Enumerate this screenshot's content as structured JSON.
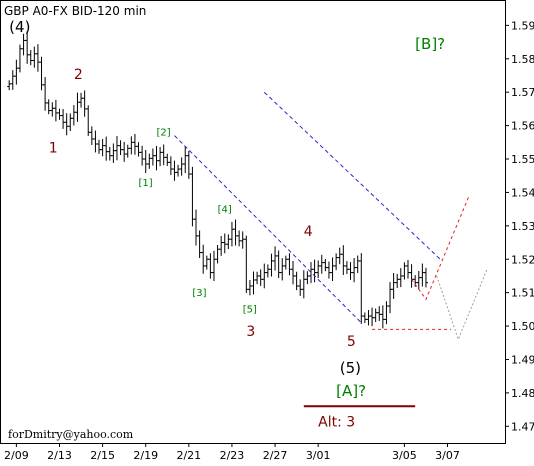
{
  "chart_data": {
    "type": "ohlc",
    "title": "GBP A0-FX BID-120 min",
    "footer": "forDmitry@yahoo.com",
    "ylim": [
      1.465,
      1.597
    ],
    "y_ticks": [
      1.47,
      1.48,
      1.49,
      1.5,
      1.51,
      1.52,
      1.53,
      1.54,
      1.55,
      1.56,
      1.57,
      1.58,
      1.59
    ],
    "y_tick_labels": [
      "1.47",
      "1.48",
      "1.49",
      "1.50",
      "1.51",
      "1.52",
      "1.53",
      "1.54",
      "1.55",
      "1.56",
      "1.57",
      "1.58",
      "1.59"
    ],
    "x_ticks": [
      4,
      16,
      28,
      40,
      52,
      64,
      76,
      88,
      100,
      112,
      124
    ],
    "x_tick_labels": [
      "2/09",
      "2/13",
      "2/15",
      "2/19",
      "2/21",
      "2/23",
      "2/27",
      "3/01",
      "3/05",
      "3/07"
    ],
    "x_tick_label_index": [
      0,
      1,
      2,
      3,
      4,
      5,
      6,
      7,
      9,
      10
    ],
    "xlim": [
      0,
      140
    ],
    "closes": [
      1.5725,
      1.5748,
      1.5772,
      1.583,
      1.5855,
      1.5812,
      1.5795,
      1.5815,
      1.579,
      1.5722,
      1.5668,
      1.5645,
      1.5652,
      1.5638,
      1.563,
      1.561,
      1.5598,
      1.5622,
      1.564,
      1.567,
      1.5682,
      1.565,
      1.558,
      1.556,
      1.5545,
      1.5528,
      1.554,
      1.5522,
      1.551,
      1.5525,
      1.554,
      1.5528,
      1.5515,
      1.5532,
      1.555,
      1.5538,
      1.552,
      1.55,
      1.5485,
      1.5502,
      1.551,
      1.5495,
      1.552,
      1.5505,
      1.549,
      1.547,
      1.546,
      1.547,
      1.5485,
      1.551,
      1.5455,
      1.532,
      1.527,
      1.522,
      1.518,
      1.52,
      1.516,
      1.52,
      1.523,
      1.525,
      1.5245,
      1.526,
      1.529,
      1.527,
      1.5255,
      1.526,
      1.511,
      1.512,
      1.5138,
      1.515,
      1.514,
      1.516,
      1.517,
      1.5195,
      1.521,
      1.516,
      1.518,
      1.52,
      1.517,
      1.515,
      1.512,
      1.511,
      1.514,
      1.515,
      1.517,
      1.516,
      1.518,
      1.519,
      1.5175,
      1.516,
      1.518,
      1.5205,
      1.5215,
      1.518,
      1.517,
      1.516,
      1.5175,
      1.5195,
      1.503,
      1.502,
      1.503,
      1.5025,
      1.504,
      1.5035,
      1.502,
      1.506,
      1.511,
      1.513,
      1.514,
      1.515,
      1.518,
      1.516,
      1.514,
      1.513,
      1.5145,
      1.516,
      1.513
    ],
    "overlays": {
      "channel_color": "#2828c8",
      "projection_color": "#e02020",
      "alt_projection_color": "#a0a0a0",
      "alt_line_color": "#800000",
      "channel_upper": [
        [
          73,
          1.57
        ],
        [
          122,
          1.52
        ]
      ],
      "channel_lower": [
        [
          48,
          1.557
        ],
        [
          100,
          1.501
        ]
      ],
      "projection_dotted_level": [
        [
          103,
          1.499
        ],
        [
          125,
          1.499
        ]
      ],
      "projection_red": [
        [
          114,
          1.514
        ],
        [
          118,
          1.508
        ],
        [
          130,
          1.539
        ]
      ],
      "projection_gray": [
        [
          121,
          1.515
        ],
        [
          127,
          1.496
        ],
        [
          135,
          1.517
        ]
      ],
      "alt_line": [
        [
          84,
          1.476
        ],
        [
          115,
          1.476
        ]
      ]
    },
    "annotations": [
      {
        "text": "(4)",
        "x": 2,
        "y": 1.588,
        "color": "#000000",
        "size": "major"
      },
      {
        "text": "2",
        "x": 20,
        "y": 1.574,
        "color": "#800000",
        "size": "mid"
      },
      {
        "text": "1",
        "x": 13,
        "y": 1.552,
        "color": "#800000",
        "size": "mid"
      },
      {
        "text": "[2]",
        "x": 43,
        "y": 1.557,
        "color": "#008000",
        "size": "minor"
      },
      {
        "text": "[1]",
        "x": 38,
        "y": 1.542,
        "color": "#008000",
        "size": "minor"
      },
      {
        "text": "[4]",
        "x": 60,
        "y": 1.534,
        "color": "#008000",
        "size": "minor"
      },
      {
        "text": "[3]",
        "x": 53,
        "y": 1.509,
        "color": "#008000",
        "size": "minor"
      },
      {
        "text": "[5]",
        "x": 67,
        "y": 1.504,
        "color": "#008000",
        "size": "minor"
      },
      {
        "text": "3",
        "x": 68,
        "y": 1.497,
        "color": "#800000",
        "size": "mid"
      },
      {
        "text": "4",
        "x": 84,
        "y": 1.527,
        "color": "#800000",
        "size": "mid"
      },
      {
        "text": "5",
        "x": 96,
        "y": 1.494,
        "color": "#800000",
        "size": "mid"
      },
      {
        "text": "(5)",
        "x": 94,
        "y": 1.486,
        "color": "#000000",
        "size": "major"
      },
      {
        "text": "[A]?",
        "x": 93,
        "y": 1.479,
        "color": "#008000",
        "size": "major"
      },
      {
        "text": "[B]?",
        "x": 115,
        "y": 1.583,
        "color": "#008000",
        "size": "major"
      },
      {
        "text": "Alt:  3",
        "x": 88,
        "y": 1.47,
        "color": "#800000",
        "size": "mid"
      }
    ]
  }
}
